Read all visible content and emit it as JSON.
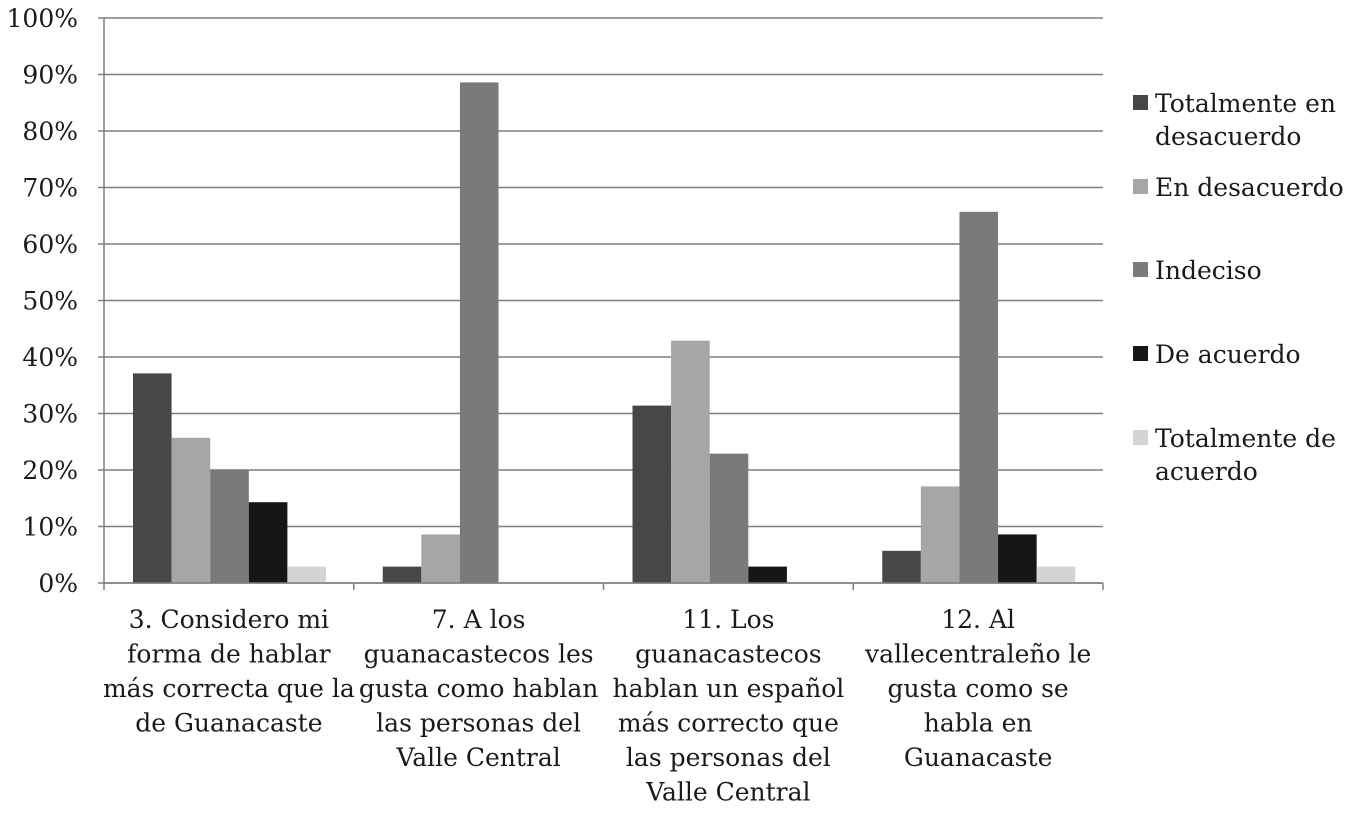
{
  "chart_data": {
    "type": "bar",
    "title": "",
    "xlabel": "",
    "ylabel": "",
    "ylim": [
      0,
      1
    ],
    "yticks": [
      "0%",
      "10%",
      "20%",
      "30%",
      "40%",
      "50%",
      "60%",
      "70%",
      "80%",
      "90%",
      "100%"
    ],
    "grid": true,
    "legend_position": "right",
    "categories": [
      [
        "3. Considero mi",
        "forma de hablar",
        "más correcta que la",
        "de Guanacaste"
      ],
      [
        "7. A los",
        "guanacastecos les",
        "gusta como hablan",
        "las personas del",
        "Valle Central"
      ],
      [
        "11. Los",
        "guanacastecos",
        "hablan un español",
        "más correcto que",
        "las personas del",
        "Valle Central"
      ],
      [
        "12. Al",
        "vallecentraleño le",
        "gusta como se",
        "habla en",
        "Guanacaste"
      ]
    ],
    "series": [
      {
        "name": [
          "Totalmente en",
          "desacuerdo"
        ],
        "color": "#474747",
        "values": [
          0.371,
          0.029,
          0.314,
          0.057
        ]
      },
      {
        "name": [
          "En desacuerdo"
        ],
        "color": "#a6a6a6",
        "values": [
          0.257,
          0.086,
          0.429,
          0.171
        ]
      },
      {
        "name": [
          "Indeciso"
        ],
        "color": "#7a7a7a",
        "values": [
          0.2,
          0.886,
          0.229,
          0.657
        ]
      },
      {
        "name": [
          "De acuerdo"
        ],
        "color": "#161616",
        "values": [
          0.143,
          0.0,
          0.029,
          0.086
        ]
      },
      {
        "name": [
          "Totalmente de",
          "acuerdo"
        ],
        "color": "#d4d4d4",
        "values": [
          0.029,
          0.0,
          0.0,
          0.029
        ]
      }
    ],
    "colors": {
      "grid": "#7f7f7f",
      "axis": "#7f7f7f",
      "text": "#1a1a1a"
    }
  }
}
